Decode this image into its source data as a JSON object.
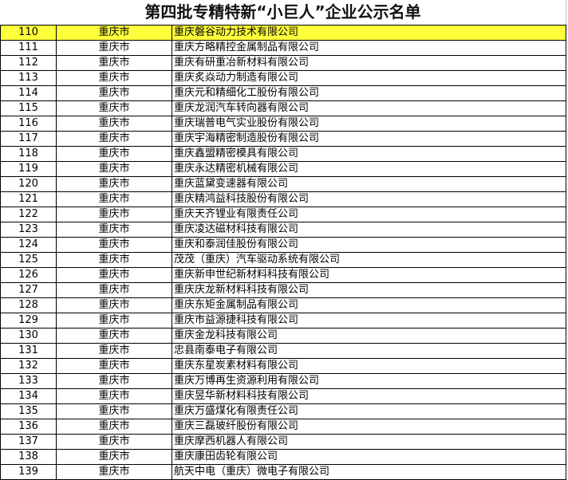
{
  "title": "第四批专精特新“小巨人”企业公示名单",
  "highlight_color": "#ffff3c",
  "rows": [
    {
      "no": "110",
      "city": "重庆市",
      "name": "重庆磐谷动力技术有限公司"
    },
    {
      "no": "111",
      "city": "重庆市",
      "name": "重庆方略精控金属制品有限公司"
    },
    {
      "no": "112",
      "city": "重庆市",
      "name": "重庆有研重冶新材料有限公司"
    },
    {
      "no": "113",
      "city": "重庆市",
      "name": "重庆炙焱动力制造有限公司"
    },
    {
      "no": "114",
      "city": "重庆市",
      "name": "重庆元和精细化工股份有限公司"
    },
    {
      "no": "115",
      "city": "重庆市",
      "name": "重庆龙润汽车转向器有限公司"
    },
    {
      "no": "116",
      "city": "重庆市",
      "name": "重庆瑞普电气实业股份有限公司"
    },
    {
      "no": "117",
      "city": "重庆市",
      "name": "重庆宇海精密制造股份有限公司"
    },
    {
      "no": "118",
      "city": "重庆市",
      "name": "重庆鑫盟精密模具有限公司"
    },
    {
      "no": "119",
      "city": "重庆市",
      "name": "重庆永达精密机械有限公司"
    },
    {
      "no": "120",
      "city": "重庆市",
      "name": "重庆蓝黛变速器有限公司"
    },
    {
      "no": "121",
      "city": "重庆市",
      "name": "重庆精鸿益科技股份有限公司"
    },
    {
      "no": "122",
      "city": "重庆市",
      "name": "重庆天齐锂业有限责任公司"
    },
    {
      "no": "123",
      "city": "重庆市",
      "name": "重庆凌达磁材科技有限公司"
    },
    {
      "no": "124",
      "city": "重庆市",
      "name": "重庆和泰润佳股份有限公司"
    },
    {
      "no": "125",
      "city": "重庆市",
      "name": "茂茂（重庆）汽车驱动系统有限公司"
    },
    {
      "no": "126",
      "city": "重庆市",
      "name": "重庆新申世纪新材料科技有限公司"
    },
    {
      "no": "127",
      "city": "重庆市",
      "name": "重庆庆龙新材料科技有限公司"
    },
    {
      "no": "128",
      "city": "重庆市",
      "name": "重庆东矩金属制品有限公司"
    },
    {
      "no": "129",
      "city": "重庆市",
      "name": "重庆市益源捷科技有限公司"
    },
    {
      "no": "130",
      "city": "重庆市",
      "name": "重庆金龙科技有限公司"
    },
    {
      "no": "131",
      "city": "重庆市",
      "name": "忠县南泰电子有限公司"
    },
    {
      "no": "132",
      "city": "重庆市",
      "name": "重庆东星炭素材料有限公司"
    },
    {
      "no": "133",
      "city": "重庆市",
      "name": "重庆万博再生资源利用有限公司"
    },
    {
      "no": "134",
      "city": "重庆市",
      "name": "重庆昱华新材料科技有限公司"
    },
    {
      "no": "135",
      "city": "重庆市",
      "name": "重庆万盛煤化有限责任公司"
    },
    {
      "no": "136",
      "city": "重庆市",
      "name": "重庆三磊玻纤股份有限公司"
    },
    {
      "no": "137",
      "city": "重庆市",
      "name": "重庆摩西机器人有限公司"
    },
    {
      "no": "138",
      "city": "重庆市",
      "name": "重庆康田齿轮有限公司"
    },
    {
      "no": "139",
      "city": "重庆市",
      "name": "航天中电（重庆）微电子有限公司"
    }
  ]
}
